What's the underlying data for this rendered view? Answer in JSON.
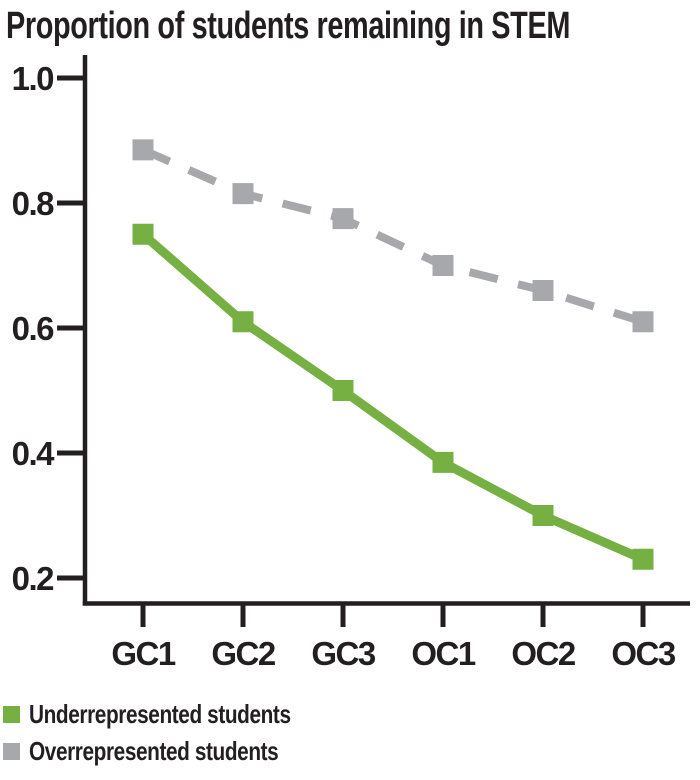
{
  "colors": {
    "ink": "#231f20",
    "green": "#76b043",
    "gray": "#a6a8ab",
    "background": "#ffffff"
  },
  "chart_data": {
    "type": "line",
    "title": "Proportion of students remaining in STEM",
    "categories": [
      "GC1",
      "GC2",
      "GC3",
      "OC1",
      "OC2",
      "OC3"
    ],
    "yticks": [
      "1.0",
      "0.8",
      "0.6",
      "0.4",
      "0.2"
    ],
    "ylim": [
      0.2,
      1.0
    ],
    "grid": false,
    "marker": "square",
    "legend_position": "bottom-left",
    "series": [
      {
        "name": "Underrepresented students",
        "color": "#76b043",
        "line_style": "solid",
        "values": [
          0.75,
          0.61,
          0.5,
          0.385,
          0.3,
          0.23
        ]
      },
      {
        "name": "Overrepresented students",
        "color": "#a6a8ab",
        "line_style": "dashed",
        "values": [
          0.885,
          0.815,
          0.775,
          0.7,
          0.66,
          0.61
        ]
      }
    ]
  }
}
